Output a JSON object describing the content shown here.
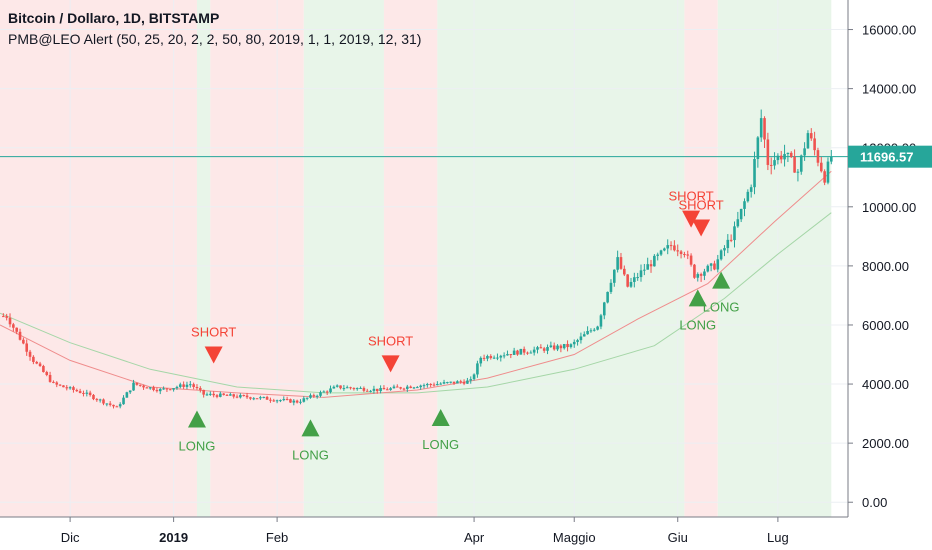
{
  "legend": {
    "title": "Bitcoin / Dollaro, 1D, BITSTAMP",
    "indicator": "PMB@LEO Alert (50, 25, 20, 2, 2, 50, 80, 2019, 1, 1, 2019, 12, 31)"
  },
  "colors": {
    "up": "#26a69a",
    "down": "#ef5350",
    "long_signal": "#43a047",
    "short_signal": "#f44336",
    "zone_bear": "#fde8e8",
    "zone_bull": "#e8f5e9",
    "ma_fast": "#ef8c8c",
    "ma_slow": "#a5d6a7",
    "last_price_bg": "#26a69a"
  },
  "chart_data": {
    "type": "candlestick",
    "y_axis": {
      "ticks": [
        "0.00",
        "2000.00",
        "4000.00",
        "6000.00",
        "8000.00",
        "10000.00",
        "12000.00",
        "14000.00",
        "16000.00"
      ],
      "range": [
        -500,
        17000
      ],
      "side": "right"
    },
    "x_axis": {
      "labels": [
        {
          "text": "Dic",
          "date": "2018-12-01",
          "bold": false
        },
        {
          "text": "2019",
          "date": "2019-01-01",
          "bold": true
        },
        {
          "text": "Feb",
          "date": "2019-02-01",
          "bold": false
        },
        {
          "text": "Apr",
          "date": "2019-04-01",
          "bold": false
        },
        {
          "text": "Maggio",
          "date": "2019-05-01",
          "bold": false
        },
        {
          "text": "Giu",
          "date": "2019-06-01",
          "bold": false
        },
        {
          "text": "Lug",
          "date": "2019-07-01",
          "bold": false
        }
      ],
      "range": [
        "2018-11-10",
        "2019-07-22"
      ]
    },
    "last_price": "11696.57",
    "key_prices": [
      {
        "date": "2018-11-12",
        "value": 6300
      },
      {
        "date": "2018-11-20",
        "value": 4800
      },
      {
        "date": "2018-11-26",
        "value": 4000
      },
      {
        "date": "2018-12-05",
        "value": 3700
      },
      {
        "date": "2018-12-15",
        "value": 3200
      },
      {
        "date": "2018-12-20",
        "value": 4000
      },
      {
        "date": "2018-12-28",
        "value": 3800
      },
      {
        "date": "2019-01-06",
        "value": 4000
      },
      {
        "date": "2019-01-10",
        "value": 3650
      },
      {
        "date": "2019-01-25",
        "value": 3550
      },
      {
        "date": "2019-02-07",
        "value": 3400
      },
      {
        "date": "2019-02-19",
        "value": 3900
      },
      {
        "date": "2019-03-04",
        "value": 3800
      },
      {
        "date": "2019-03-15",
        "value": 3950
      },
      {
        "date": "2019-03-31",
        "value": 4100
      },
      {
        "date": "2019-04-03",
        "value": 4900
      },
      {
        "date": "2019-04-15",
        "value": 5100
      },
      {
        "date": "2019-04-30",
        "value": 5300
      },
      {
        "date": "2019-05-08",
        "value": 6000
      },
      {
        "date": "2019-05-11",
        "value": 7200
      },
      {
        "date": "2019-05-14",
        "value": 8200
      },
      {
        "date": "2019-05-17",
        "value": 7300
      },
      {
        "date": "2019-05-22",
        "value": 7900
      },
      {
        "date": "2019-05-30",
        "value": 8700
      },
      {
        "date": "2019-06-03",
        "value": 8500
      },
      {
        "date": "2019-06-06",
        "value": 7700
      },
      {
        "date": "2019-06-12",
        "value": 8000
      },
      {
        "date": "2019-06-18",
        "value": 9200
      },
      {
        "date": "2019-06-23",
        "value": 10800
      },
      {
        "date": "2019-06-26",
        "value": 13000
      },
      {
        "date": "2019-06-28",
        "value": 11500
      },
      {
        "date": "2019-07-03",
        "value": 11800
      },
      {
        "date": "2019-07-07",
        "value": 11200
      },
      {
        "date": "2019-07-10",
        "value": 12500
      },
      {
        "date": "2019-07-15",
        "value": 11000
      },
      {
        "date": "2019-07-17",
        "value": 11696
      }
    ],
    "ma_fast": [
      {
        "date": "2018-11-10",
        "value": 6000
      },
      {
        "date": "2018-12-01",
        "value": 4800
      },
      {
        "date": "2018-12-25",
        "value": 3900
      },
      {
        "date": "2019-01-20",
        "value": 3700
      },
      {
        "date": "2019-02-15",
        "value": 3550
      },
      {
        "date": "2019-03-15",
        "value": 3800
      },
      {
        "date": "2019-04-05",
        "value": 4200
      },
      {
        "date": "2019-05-01",
        "value": 5000
      },
      {
        "date": "2019-05-20",
        "value": 6200
      },
      {
        "date": "2019-06-10",
        "value": 7400
      },
      {
        "date": "2019-06-30",
        "value": 9500
      },
      {
        "date": "2019-07-17",
        "value": 11200
      }
    ],
    "ma_slow": [
      {
        "date": "2018-11-10",
        "value": 6400
      },
      {
        "date": "2018-12-01",
        "value": 5400
      },
      {
        "date": "2018-12-25",
        "value": 4500
      },
      {
        "date": "2019-01-20",
        "value": 3900
      },
      {
        "date": "2019-02-15",
        "value": 3700
      },
      {
        "date": "2019-03-15",
        "value": 3700
      },
      {
        "date": "2019-04-05",
        "value": 3900
      },
      {
        "date": "2019-05-01",
        "value": 4500
      },
      {
        "date": "2019-05-25",
        "value": 5300
      },
      {
        "date": "2019-06-15",
        "value": 6900
      },
      {
        "date": "2019-07-01",
        "value": 8400
      },
      {
        "date": "2019-07-17",
        "value": 9800
      }
    ],
    "zones": [
      {
        "start": "2018-11-10",
        "end": "2019-01-08",
        "trend": "bear"
      },
      {
        "start": "2019-01-08",
        "end": "2019-01-12",
        "trend": "bull"
      },
      {
        "start": "2019-01-12",
        "end": "2019-02-09",
        "trend": "bear"
      },
      {
        "start": "2019-02-09",
        "end": "2019-03-05",
        "trend": "bull"
      },
      {
        "start": "2019-03-05",
        "end": "2019-03-21",
        "trend": "bear"
      },
      {
        "start": "2019-03-21",
        "end": "2019-06-03",
        "trend": "bull"
      },
      {
        "start": "2019-06-03",
        "end": "2019-06-13",
        "trend": "bear"
      },
      {
        "start": "2019-06-13",
        "end": "2019-07-17",
        "trend": "bull"
      }
    ],
    "signals": [
      {
        "type": "SHORT",
        "date": "2019-01-13",
        "price": 5000
      },
      {
        "type": "LONG",
        "date": "2019-01-08",
        "price": 2800
      },
      {
        "type": "LONG",
        "date": "2019-02-11",
        "price": 2500
      },
      {
        "type": "SHORT",
        "date": "2019-03-07",
        "price": 4700
      },
      {
        "type": "LONG",
        "date": "2019-03-22",
        "price": 2850
      },
      {
        "type": "SHORT",
        "date": "2019-06-05",
        "price": 9600
      },
      {
        "type": "SHORT",
        "date": "2019-06-08",
        "price": 9300
      },
      {
        "type": "LONG",
        "date": "2019-06-07",
        "price": 6900
      },
      {
        "type": "LONG",
        "date": "2019-06-14",
        "price": 7500
      }
    ]
  }
}
